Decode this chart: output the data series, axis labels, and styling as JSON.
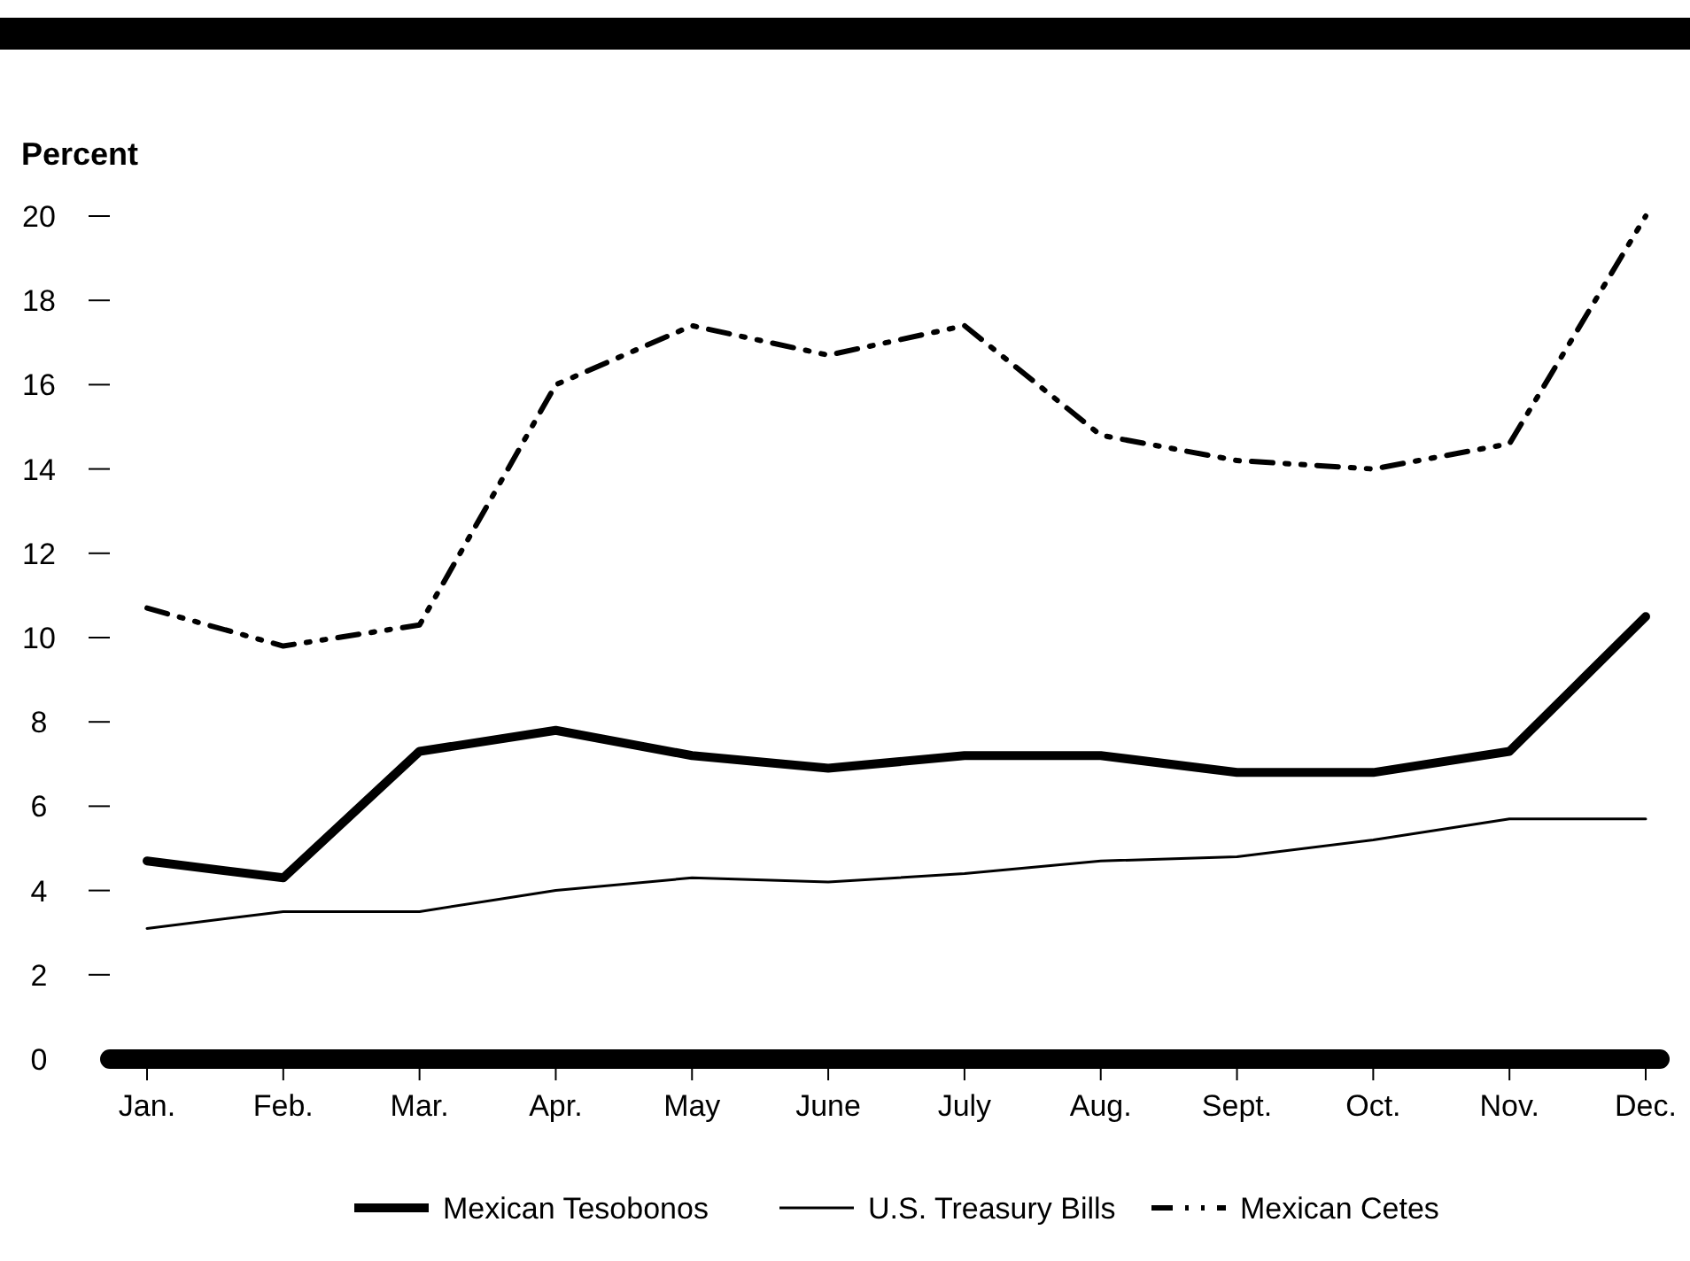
{
  "chart_data": {
    "type": "line",
    "ylabel": "Percent",
    "categories": [
      "Jan.",
      "Feb.",
      "Mar.",
      "Apr.",
      "May",
      "June",
      "July",
      "Aug.",
      "Sept.",
      "Oct.",
      "Nov.",
      "Dec."
    ],
    "ylim": [
      0,
      20
    ],
    "yticks": [
      0,
      2,
      4,
      6,
      8,
      10,
      12,
      14,
      16,
      18,
      20
    ],
    "legend": "bottom",
    "marker": "none",
    "series": [
      {
        "name": "Mexican Tesobonos",
        "color": "#000000",
        "line_style": "solid",
        "values": [
          4.7,
          4.3,
          7.3,
          7.8,
          7.2,
          6.9,
          7.2,
          7.2,
          6.8,
          6.8,
          7.3,
          10.5
        ]
      },
      {
        "name": "U.S. Treasury Bills",
        "color": "#000000",
        "line_style": "solid",
        "values": [
          3.1,
          3.5,
          3.5,
          4.0,
          4.3,
          4.2,
          4.4,
          4.7,
          4.8,
          5.2,
          5.7,
          5.7
        ]
      },
      {
        "name": "Mexican Cetes",
        "color": "#000000",
        "line_style": "dashed",
        "values": [
          10.7,
          9.8,
          10.3,
          16.0,
          17.4,
          16.7,
          17.4,
          14.8,
          14.2,
          14.0,
          14.6,
          20.0
        ]
      }
    ]
  }
}
